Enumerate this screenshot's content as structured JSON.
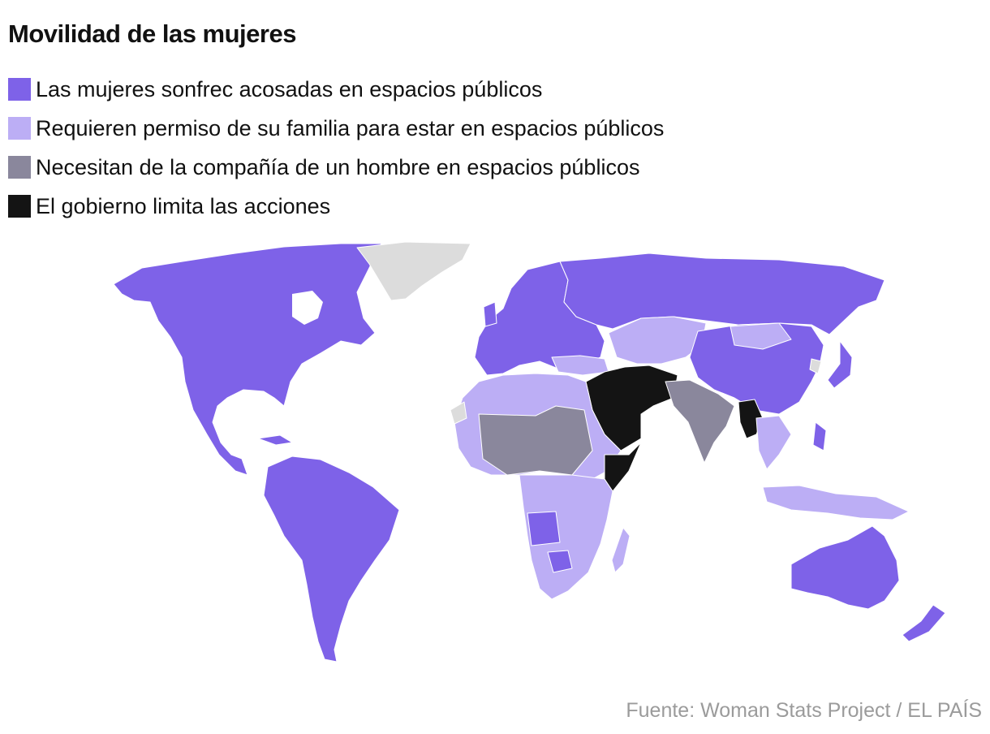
{
  "title": "Movilidad de las mujeres",
  "legend": [
    {
      "label": "Las mujeres sonfrec acosadas en espacios públicos",
      "color": "#7e62e8"
    },
    {
      "label": "Requieren permiso de su familia para estar en espacios públicos",
      "color": "#bcaef5"
    },
    {
      "label": "Necesitan de la compañía de un hombre en espacios públicos",
      "color": "#8a879c"
    },
    {
      "label": "El gobierno limita las acciones",
      "color": "#141414"
    }
  ],
  "no_data_color": "#dcdcdc",
  "source": "Fuente: Woman Stats Project / EL PAÍS"
}
